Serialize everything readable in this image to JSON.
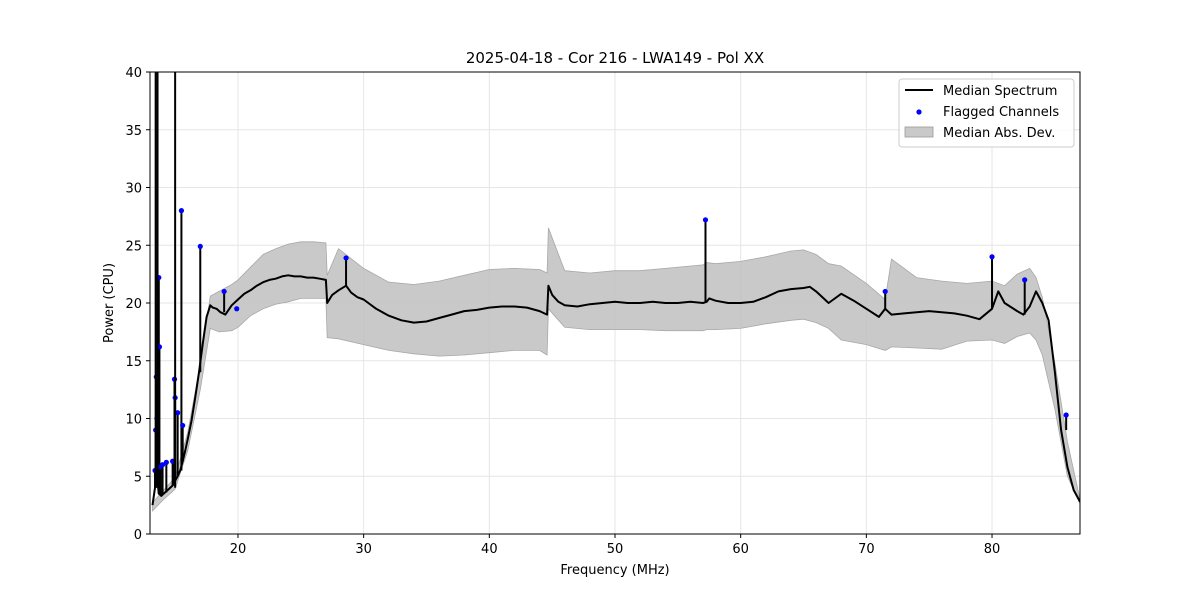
{
  "chart_data": {
    "type": "line",
    "title": "2025-04-18 - Cor 216 - LWA149 - Pol XX",
    "xlabel": "Frequency (MHz)",
    "ylabel": "Power (CPU)",
    "xlim": [
      13.0,
      87.0
    ],
    "ylim": [
      0,
      40
    ],
    "xticks": [
      20,
      30,
      40,
      50,
      60,
      70,
      80
    ],
    "yticks": [
      0,
      5,
      10,
      15,
      20,
      25,
      30,
      35,
      40
    ],
    "grid": true,
    "legend_position": "top-right",
    "colors": {
      "median": "#000000",
      "flagged": "#0000ff",
      "mad_fill": "#bfbfbf",
      "grid": "#e6e6e6"
    },
    "series": [
      {
        "name": "Median Spectrum",
        "kind": "line",
        "x": [
          13.2,
          13.4,
          13.5,
          13.6,
          13.7,
          13.8,
          13.9,
          14.0,
          14.2,
          14.5,
          14.8,
          15.0,
          15.2,
          15.4,
          15.6,
          15.8,
          16.0,
          16.3,
          16.6,
          16.9,
          17.2,
          17.5,
          17.8,
          18.0,
          18.3,
          18.6,
          19.0,
          19.5,
          20.0,
          20.5,
          21.0,
          21.5,
          22.0,
          22.5,
          23.0,
          23.5,
          24.0,
          24.5,
          25.0,
          25.5,
          26.0,
          26.5,
          27.0,
          27.1,
          27.5,
          28.0,
          28.6,
          29.0,
          29.5,
          30.0,
          31.0,
          32.0,
          33.0,
          34.0,
          35.0,
          36.0,
          37.0,
          38.0,
          39.0,
          40.0,
          41.0,
          42.0,
          43.0,
          44.0,
          44.6,
          44.7,
          45.0,
          45.5,
          46.0,
          47.0,
          48.0,
          49.0,
          50.0,
          51.0,
          52.0,
          53.0,
          54.0,
          55.0,
          56.0,
          57.0,
          57.3,
          57.5,
          58.0,
          59.0,
          60.0,
          61.0,
          62.0,
          63.0,
          64.0,
          65.0,
          65.5,
          66.0,
          67.0,
          68.0,
          69.0,
          70.0,
          71.0,
          71.5,
          72.0,
          73.0,
          74.0,
          75.0,
          76.0,
          77.0,
          78.0,
          79.0,
          80.0,
          80.5,
          81.0,
          82.0,
          82.5,
          83.0,
          83.5,
          84.0,
          84.5,
          85.0,
          85.5,
          86.0,
          86.5,
          87.0
        ],
        "y": [
          2.5,
          4.0,
          5.0,
          4.5,
          3.5,
          3.4,
          3.3,
          3.4,
          3.6,
          3.9,
          4.2,
          4.6,
          5.0,
          5.5,
          6.3,
          7.2,
          8.2,
          9.8,
          11.8,
          14.0,
          16.5,
          18.8,
          19.8,
          19.6,
          19.5,
          19.2,
          19.0,
          19.8,
          20.3,
          20.8,
          21.1,
          21.5,
          21.8,
          22.0,
          22.1,
          22.3,
          22.4,
          22.3,
          22.3,
          22.2,
          22.2,
          22.1,
          22.0,
          20.0,
          20.7,
          21.1,
          21.5,
          20.9,
          20.5,
          20.3,
          19.5,
          18.9,
          18.5,
          18.3,
          18.4,
          18.7,
          19.0,
          19.3,
          19.4,
          19.6,
          19.7,
          19.7,
          19.6,
          19.3,
          19.0,
          21.5,
          20.7,
          20.1,
          19.8,
          19.7,
          19.9,
          20.0,
          20.1,
          20.0,
          20.0,
          20.1,
          20.0,
          20.0,
          20.1,
          20.0,
          20.1,
          20.4,
          20.2,
          20.0,
          20.0,
          20.1,
          20.5,
          21.0,
          21.2,
          21.3,
          21.4,
          21.0,
          20.0,
          20.8,
          20.2,
          19.5,
          18.8,
          19.5,
          19.0,
          19.1,
          19.2,
          19.3,
          19.2,
          19.1,
          18.9,
          18.6,
          19.5,
          21.0,
          20.0,
          19.3,
          19.0,
          19.7,
          21.0,
          20.0,
          18.5,
          14.0,
          9.0,
          5.8,
          3.8,
          2.8
        ]
      },
      {
        "name": "Flagged Channels",
        "kind": "scatter",
        "x": [
          13.4,
          13.45,
          13.5,
          13.55,
          13.6,
          13.7,
          13.75,
          13.85,
          14.0,
          14.3,
          14.8,
          14.95,
          15.0,
          15.2,
          15.5,
          15.6,
          17.0,
          18.9,
          19.9,
          28.6,
          57.2,
          71.5,
          80.0,
          82.6,
          85.9
        ],
        "y": [
          5.5,
          9.0,
          13.6,
          10.0,
          7.6,
          22.2,
          16.2,
          5.8,
          6.0,
          6.2,
          6.3,
          13.4,
          11.8,
          10.5,
          28.0,
          9.4,
          24.9,
          21.0,
          19.5,
          23.9,
          27.2,
          21.0,
          24.0,
          22.0,
          10.3
        ]
      },
      {
        "name": "Median Abs. Dev.",
        "kind": "band",
        "x": [
          13.2,
          14.0,
          15.0,
          16.0,
          17.0,
          17.8,
          18.5,
          19.5,
          20.0,
          21.0,
          22.0,
          23.0,
          24.0,
          25.0,
          26.0,
          27.0,
          27.1,
          28.0,
          30.0,
          32.0,
          34.0,
          36.0,
          38.0,
          40.0,
          42.0,
          44.0,
          44.6,
          44.7,
          46.0,
          48.0,
          50.0,
          52.0,
          54.0,
          56.0,
          57.0,
          57.3,
          58.0,
          60.0,
          62.0,
          64.0,
          65.0,
          66.0,
          67.0,
          68.0,
          70.0,
          71.5,
          72.0,
          74.0,
          76.0,
          78.0,
          80.0,
          81.0,
          82.0,
          83.0,
          83.5,
          84.0,
          85.0,
          86.0,
          87.0
        ],
        "lower": [
          2.0,
          2.9,
          3.9,
          7.2,
          12.5,
          17.8,
          17.5,
          17.6,
          17.9,
          18.9,
          19.5,
          19.9,
          20.1,
          20.4,
          20.4,
          20.4,
          17.0,
          16.9,
          16.4,
          15.9,
          15.6,
          15.4,
          15.5,
          15.7,
          15.9,
          15.9,
          15.5,
          19.5,
          17.9,
          17.7,
          17.7,
          17.7,
          17.6,
          17.6,
          17.6,
          17.7,
          17.7,
          17.8,
          18.2,
          18.5,
          18.6,
          18.3,
          17.8,
          16.8,
          16.4,
          15.9,
          16.2,
          16.1,
          16.0,
          16.7,
          16.8,
          16.5,
          17.1,
          17.4,
          16.8,
          15.5,
          10.8,
          5.0,
          2.6
        ],
        "upper": [
          2.7,
          3.7,
          4.9,
          8.8,
          14.7,
          20.6,
          21.0,
          21.6,
          22.0,
          23.1,
          24.2,
          24.7,
          25.1,
          25.3,
          25.3,
          25.2,
          22.4,
          24.7,
          23.0,
          21.8,
          21.6,
          21.9,
          22.4,
          22.9,
          23.0,
          22.9,
          22.6,
          26.5,
          22.8,
          22.6,
          22.8,
          22.8,
          23.0,
          23.2,
          23.3,
          23.5,
          23.4,
          23.6,
          24.0,
          24.5,
          24.6,
          24.2,
          23.4,
          23.2,
          21.7,
          20.3,
          23.8,
          22.2,
          21.9,
          21.7,
          21.9,
          21.5,
          22.5,
          23.0,
          22.2,
          20.5,
          14.8,
          8.0,
          3.0
        ]
      }
    ]
  }
}
